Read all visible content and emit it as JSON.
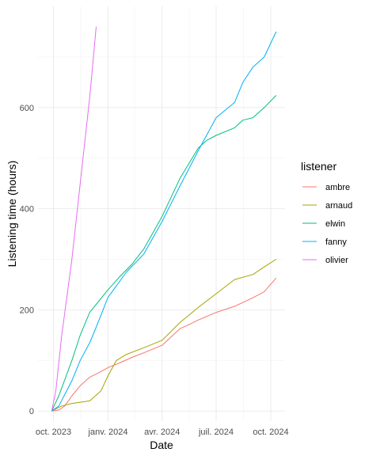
{
  "chart_data": {
    "type": "line",
    "xlabel": "Date",
    "ylabel": "Listening time (hours)",
    "legend_title": "listener",
    "legend_position": "right",
    "grid": true,
    "xlim": [
      "2023-09-05",
      "2024-10-25"
    ],
    "ylim": [
      -20,
      800
    ],
    "x_ticks": [
      {
        "date": "2023-10-01",
        "label": "oct. 2023"
      },
      {
        "date": "2024-01-01",
        "label": "janv. 2024"
      },
      {
        "date": "2024-04-01",
        "label": "avr. 2024"
      },
      {
        "date": "2024-07-01",
        "label": "juil. 2024"
      },
      {
        "date": "2024-10-01",
        "label": "oct. 2024"
      }
    ],
    "y_ticks": [
      0,
      200,
      400,
      600
    ],
    "series": [
      {
        "name": "ambre",
        "color": "#F8766D",
        "points": [
          [
            "2023-09-28",
            0
          ],
          [
            "2023-10-10",
            2
          ],
          [
            "2023-10-20",
            10
          ],
          [
            "2023-11-01",
            30
          ],
          [
            "2023-11-15",
            50
          ],
          [
            "2023-12-01",
            67
          ],
          [
            "2023-12-15",
            75
          ],
          [
            "2024-01-01",
            86
          ],
          [
            "2024-01-20",
            95
          ],
          [
            "2024-02-10",
            106
          ],
          [
            "2024-03-01",
            115
          ],
          [
            "2024-04-01",
            130
          ],
          [
            "2024-05-01",
            163
          ],
          [
            "2024-05-15",
            170
          ],
          [
            "2024-06-01",
            180
          ],
          [
            "2024-07-01",
            195
          ],
          [
            "2024-08-01",
            207
          ],
          [
            "2024-09-01",
            224
          ],
          [
            "2024-09-20",
            236
          ],
          [
            "2024-10-10",
            263
          ]
        ]
      },
      {
        "name": "arnaud",
        "color": "#A3A500",
        "points": [
          [
            "2023-09-28",
            0
          ],
          [
            "2023-10-15",
            10
          ],
          [
            "2023-11-01",
            15
          ],
          [
            "2023-12-01",
            20
          ],
          [
            "2023-12-20",
            40
          ],
          [
            "2024-01-01",
            70
          ],
          [
            "2024-01-15",
            100
          ],
          [
            "2024-02-01",
            112
          ],
          [
            "2024-03-01",
            125
          ],
          [
            "2024-04-01",
            140
          ],
          [
            "2024-05-01",
            175
          ],
          [
            "2024-06-01",
            205
          ],
          [
            "2024-07-01",
            232
          ],
          [
            "2024-08-01",
            260
          ],
          [
            "2024-09-01",
            270
          ],
          [
            "2024-09-20",
            285
          ],
          [
            "2024-10-10",
            300
          ]
        ]
      },
      {
        "name": "elwin",
        "color": "#00BF7D",
        "points": [
          [
            "2023-09-28",
            0
          ],
          [
            "2023-10-10",
            30
          ],
          [
            "2023-11-01",
            100
          ],
          [
            "2023-11-15",
            150
          ],
          [
            "2023-12-01",
            195
          ],
          [
            "2024-01-01",
            240
          ],
          [
            "2024-01-20",
            265
          ],
          [
            "2024-02-10",
            290
          ],
          [
            "2024-03-01",
            320
          ],
          [
            "2024-04-01",
            385
          ],
          [
            "2024-05-01",
            460
          ],
          [
            "2024-06-01",
            520
          ],
          [
            "2024-06-15",
            535
          ],
          [
            "2024-07-01",
            545
          ],
          [
            "2024-08-01",
            560
          ],
          [
            "2024-08-15",
            575
          ],
          [
            "2024-09-01",
            580
          ],
          [
            "2024-09-20",
            600
          ],
          [
            "2024-10-10",
            624
          ]
        ]
      },
      {
        "name": "fanny",
        "color": "#00B0F6",
        "points": [
          [
            "2023-09-28",
            0
          ],
          [
            "2023-10-10",
            10
          ],
          [
            "2023-11-01",
            60
          ],
          [
            "2023-11-15",
            100
          ],
          [
            "2023-12-01",
            135
          ],
          [
            "2023-12-10",
            160
          ],
          [
            "2024-01-01",
            225
          ],
          [
            "2024-02-01",
            275
          ],
          [
            "2024-03-01",
            310
          ],
          [
            "2024-04-01",
            375
          ],
          [
            "2024-05-01",
            445
          ],
          [
            "2024-06-01",
            515
          ],
          [
            "2024-07-01",
            580
          ],
          [
            "2024-08-01",
            610
          ],
          [
            "2024-08-15",
            650
          ],
          [
            "2024-09-01",
            680
          ],
          [
            "2024-09-20",
            700
          ],
          [
            "2024-10-10",
            750
          ]
        ]
      },
      {
        "name": "olivier",
        "color": "#E76BF3",
        "points": [
          [
            "2023-09-28",
            0
          ],
          [
            "2023-10-05",
            40
          ],
          [
            "2023-10-15",
            150
          ],
          [
            "2023-11-01",
            300
          ],
          [
            "2023-11-15",
            450
          ],
          [
            "2023-12-01",
            620
          ],
          [
            "2023-12-12",
            760
          ]
        ]
      }
    ]
  }
}
